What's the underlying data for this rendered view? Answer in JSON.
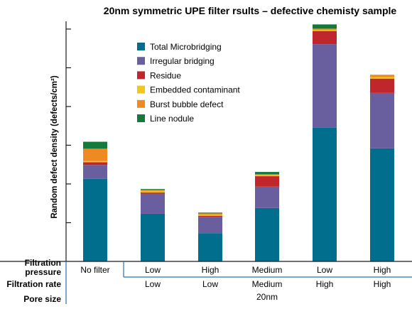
{
  "chart_data": {
    "type": "bar",
    "title": "20nm symmetric UPE filter rsults – defective chemisty sample",
    "ylabel": "Random defect density (defects/cm²)",
    "stacked": true,
    "ylim": [
      0,
      6.2
    ],
    "grid": false,
    "legend_position": "top-center",
    "series": [
      {
        "name": "Total Microbridging",
        "color": "#006e8c",
        "values": [
          2.13,
          1.23,
          0.73,
          1.38,
          3.45,
          2.92
        ]
      },
      {
        "name": "Irregular bridging",
        "color": "#6a5f9e",
        "values": [
          0.36,
          0.52,
          0.42,
          0.55,
          2.16,
          1.43
        ]
      },
      {
        "name": "Residue",
        "color": "#c0272d",
        "values": [
          0.07,
          0.03,
          0.03,
          0.27,
          0.34,
          0.37
        ]
      },
      {
        "name": "Embedded contaminant",
        "color": "#f6c51b",
        "values": [
          0.03,
          0.03,
          0.03,
          0.03,
          0.03,
          0.04
        ]
      },
      {
        "name": "Burst bubble defect",
        "color": "#ef8a23",
        "values": [
          0.32,
          0.04,
          0.03,
          0.02,
          0.03,
          0.06
        ]
      },
      {
        "name": "Line nodule",
        "color": "#137a3c",
        "values": [
          0.18,
          0.02,
          0.02,
          0.06,
          0.11,
          0.0
        ]
      }
    ],
    "table": {
      "rows": [
        {
          "label_lines": [
            "Filtration",
            "pressure"
          ],
          "cells": [
            "No filter",
            "Low",
            "High",
            "Medium",
            "Low",
            "High"
          ]
        },
        {
          "label_lines": [
            "Filtration rate"
          ],
          "cells": [
            "",
            "Low",
            "Low",
            "Medium",
            "High",
            "High"
          ]
        },
        {
          "label_lines": [
            "Pore size"
          ],
          "cells": [
            "",
            "",
            "",
            "20nm",
            "",
            ""
          ]
        }
      ]
    }
  },
  "colors": {
    "axis": "#1a1a1a",
    "table_line": "#2a6fa8"
  }
}
